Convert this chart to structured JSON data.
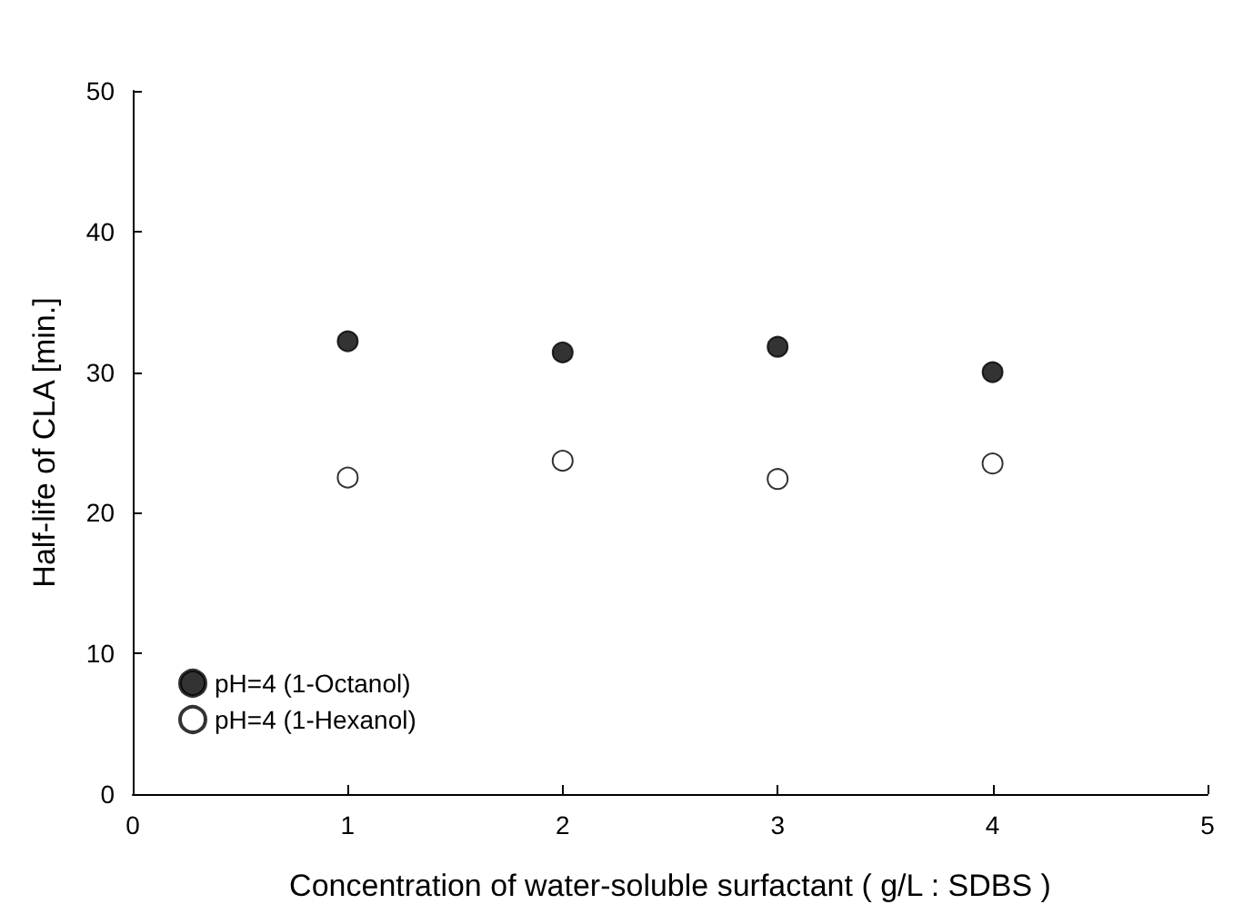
{
  "chart_data": {
    "type": "scatter",
    "xlabel": "Concentration of water-soluble surfactant ( g/L : SDBS )",
    "ylabel": "Half-life of CLA [min.]",
    "x": [
      1,
      2,
      3,
      4
    ],
    "series": [
      {
        "name": "pH=4 (1-Octanol)",
        "color": "#000000",
        "marker": "circle",
        "values": [
          32.2,
          31.4,
          31.8,
          30.0
        ]
      },
      {
        "name": "pH=4 (1-Hexanol)",
        "color": "#ffffff",
        "marker": "circle",
        "values": [
          22.5,
          23.7,
          22.4,
          23.5
        ]
      }
    ],
    "xlim": [
      0,
      5
    ],
    "xticks": [
      0,
      1,
      2,
      3,
      4,
      5
    ],
    "ylim": [
      0,
      50
    ],
    "yticks": [
      0,
      10,
      20,
      30,
      40,
      50
    ],
    "grid": false,
    "legend": "bottom left"
  }
}
